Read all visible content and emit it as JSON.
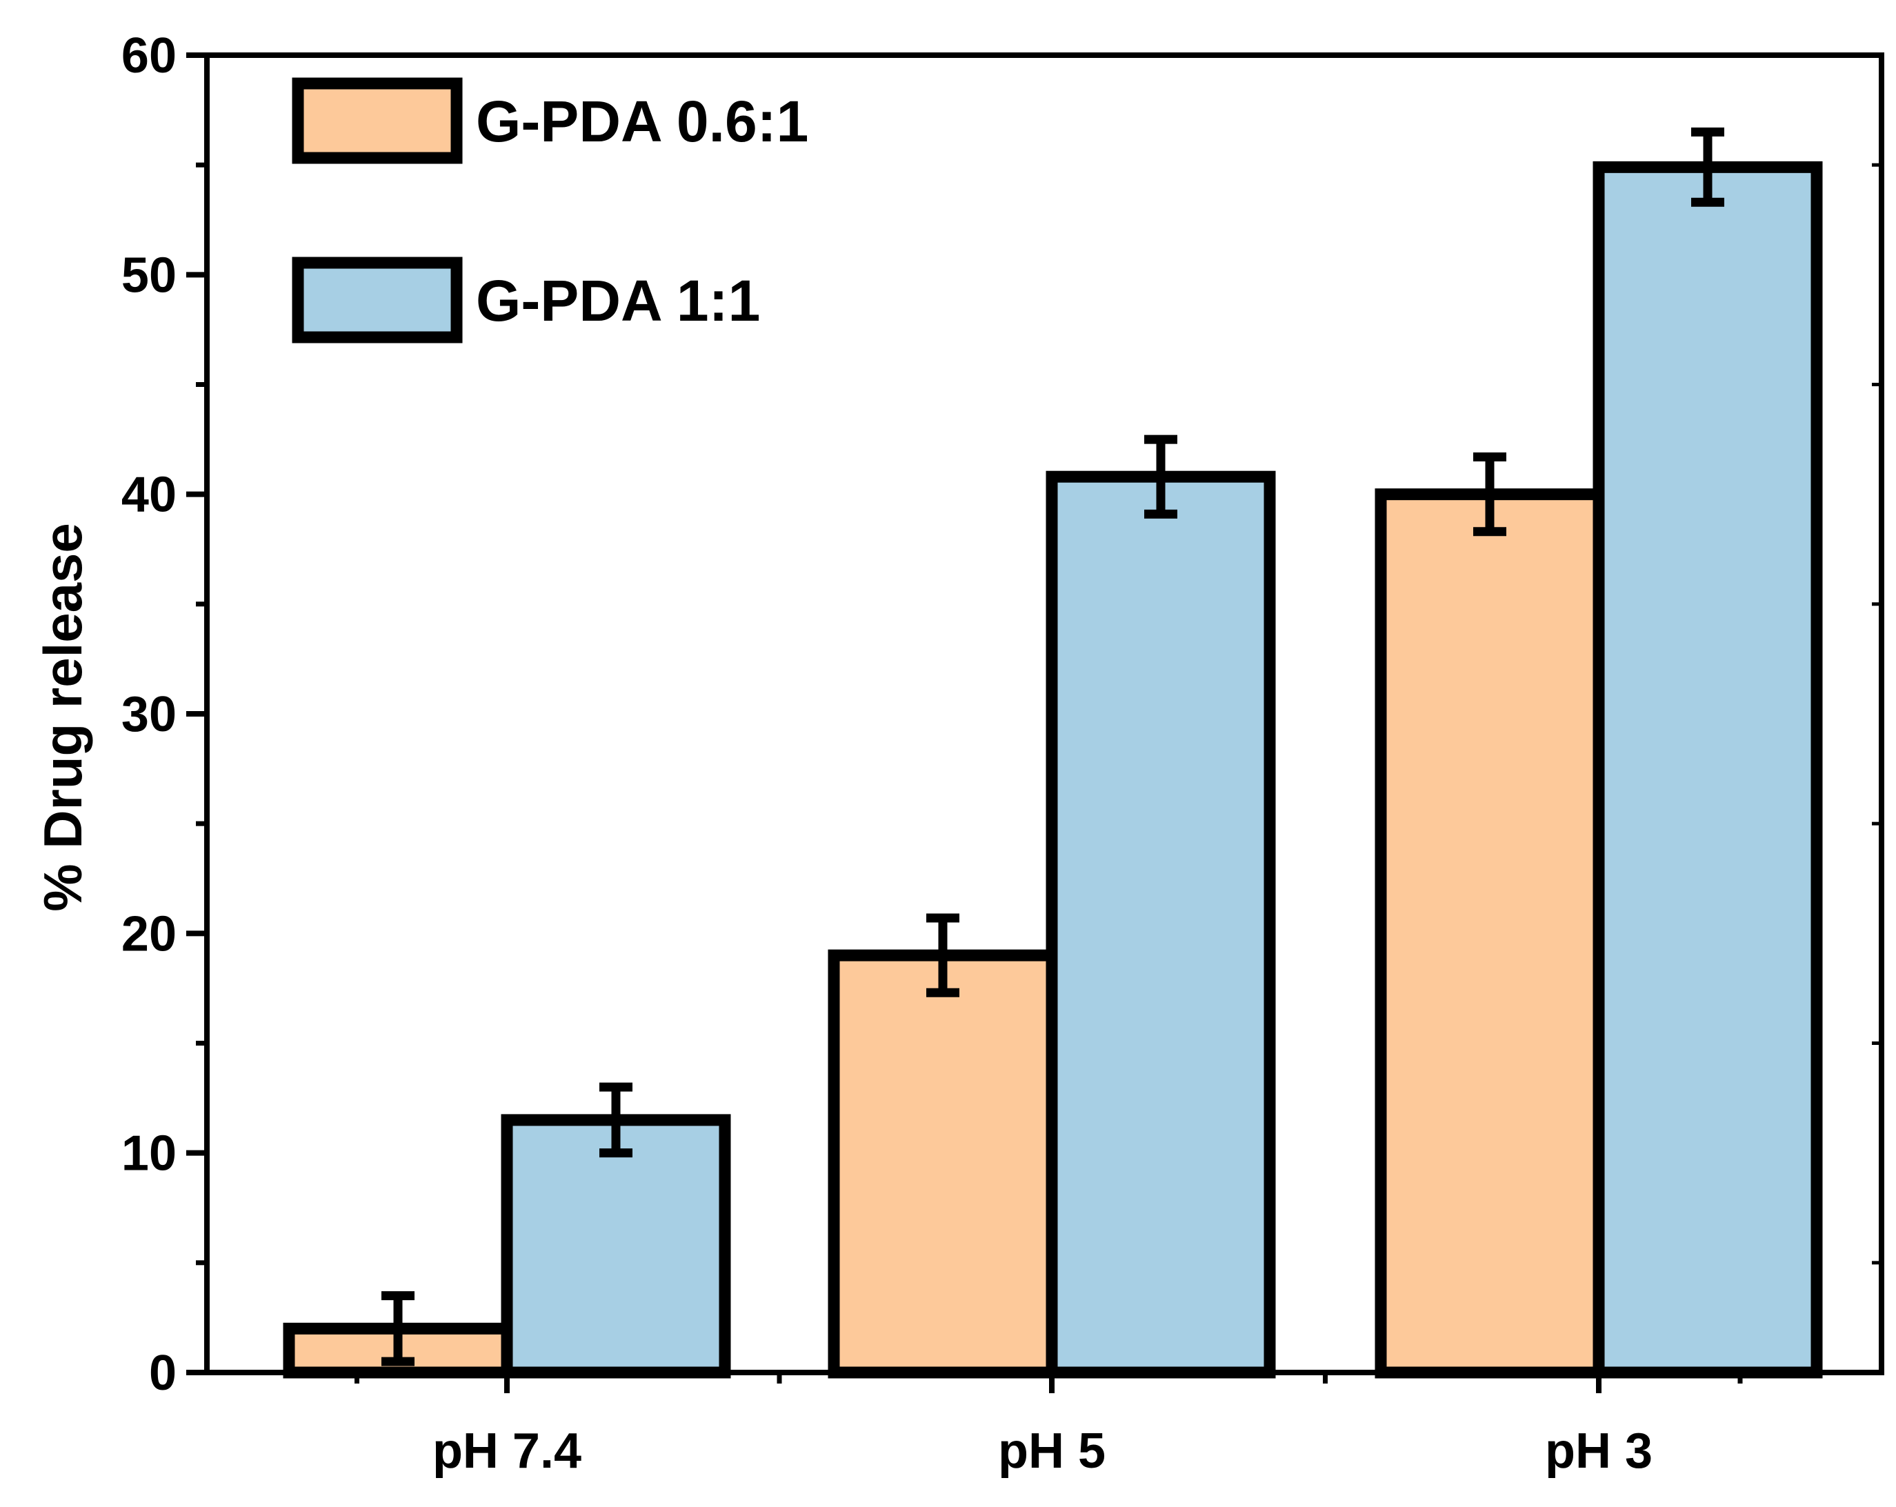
{
  "chart_data": {
    "type": "bar",
    "title": "",
    "xlabel": "",
    "ylabel": "% Drug release",
    "ylim": [
      0,
      60
    ],
    "yticks": [
      "0",
      "10",
      "20",
      "30",
      "40",
      "50",
      "60"
    ],
    "categories": [
      "pH 7.4",
      "pH 5",
      "pH 3"
    ],
    "series": [
      {
        "name": "G-PDA 0.6:1",
        "color": "#fdc99a",
        "values": [
          2,
          19,
          40
        ],
        "errors": [
          1.5,
          1.7,
          1.7
        ]
      },
      {
        "name": "G-PDA 1:1",
        "color": "#a7cfe4",
        "values": [
          11.5,
          40.8,
          54.9
        ],
        "errors": [
          1.5,
          1.7,
          1.6
        ]
      }
    ],
    "legend_position": "top-left",
    "grid": false
  }
}
